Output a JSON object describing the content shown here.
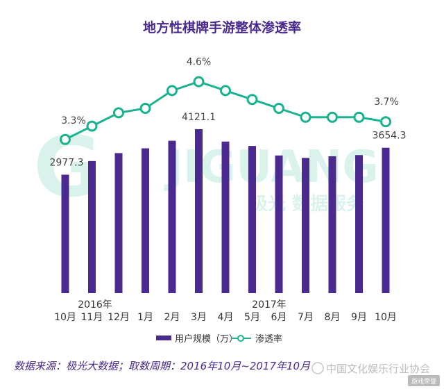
{
  "chart_data": {
    "type": "bar",
    "title": "地方性棋牌手游整体渗透率",
    "categories": [
      "10月",
      "11月",
      "12月",
      "1月",
      "2月",
      "3月",
      "4月",
      "5月",
      "6月",
      "7月",
      "8月",
      "9月",
      "10月"
    ],
    "year_labels": [
      "2016年",
      "2017年"
    ],
    "series": [
      {
        "name": "用户规模（万）",
        "type": "bar",
        "color": "#4b2a8f",
        "values": [
          2977.3,
          3320,
          3520,
          3640,
          3830,
          4121.1,
          3810,
          3700,
          3460,
          3400,
          3440,
          3470,
          3654.3
        ]
      },
      {
        "name": "渗透率",
        "type": "line",
        "color": "#1bb38f",
        "values": [
          3.3,
          3.6,
          3.9,
          4.0,
          4.4,
          4.6,
          4.4,
          4.2,
          4.0,
          3.8,
          3.8,
          3.8,
          3.7
        ]
      }
    ],
    "data_labels": {
      "bar": [
        {
          "index": 0,
          "text": "2977.3"
        },
        {
          "index": 5,
          "text": "4121.1"
        },
        {
          "index": 12,
          "text": "3654.3"
        }
      ],
      "line": [
        {
          "index": 0,
          "text": "3.3%"
        },
        {
          "index": 5,
          "text": "4.6%"
        },
        {
          "index": 12,
          "text": "3.7%"
        }
      ]
    },
    "bar_ylim": [
      0,
      4400
    ],
    "line_ylim": [
      2.5,
      5.0
    ],
    "grid": false,
    "legend_position": "bottom"
  },
  "watermark": {
    "brand": "JIGUANG",
    "subtitle": "极光 数据服务"
  },
  "footer": {
    "source": "数据来源：极光大数据；取数周期：2016年10月~2017年10月",
    "association": "中国文化娱乐行业协会",
    "badge": "游戏荣誉"
  }
}
